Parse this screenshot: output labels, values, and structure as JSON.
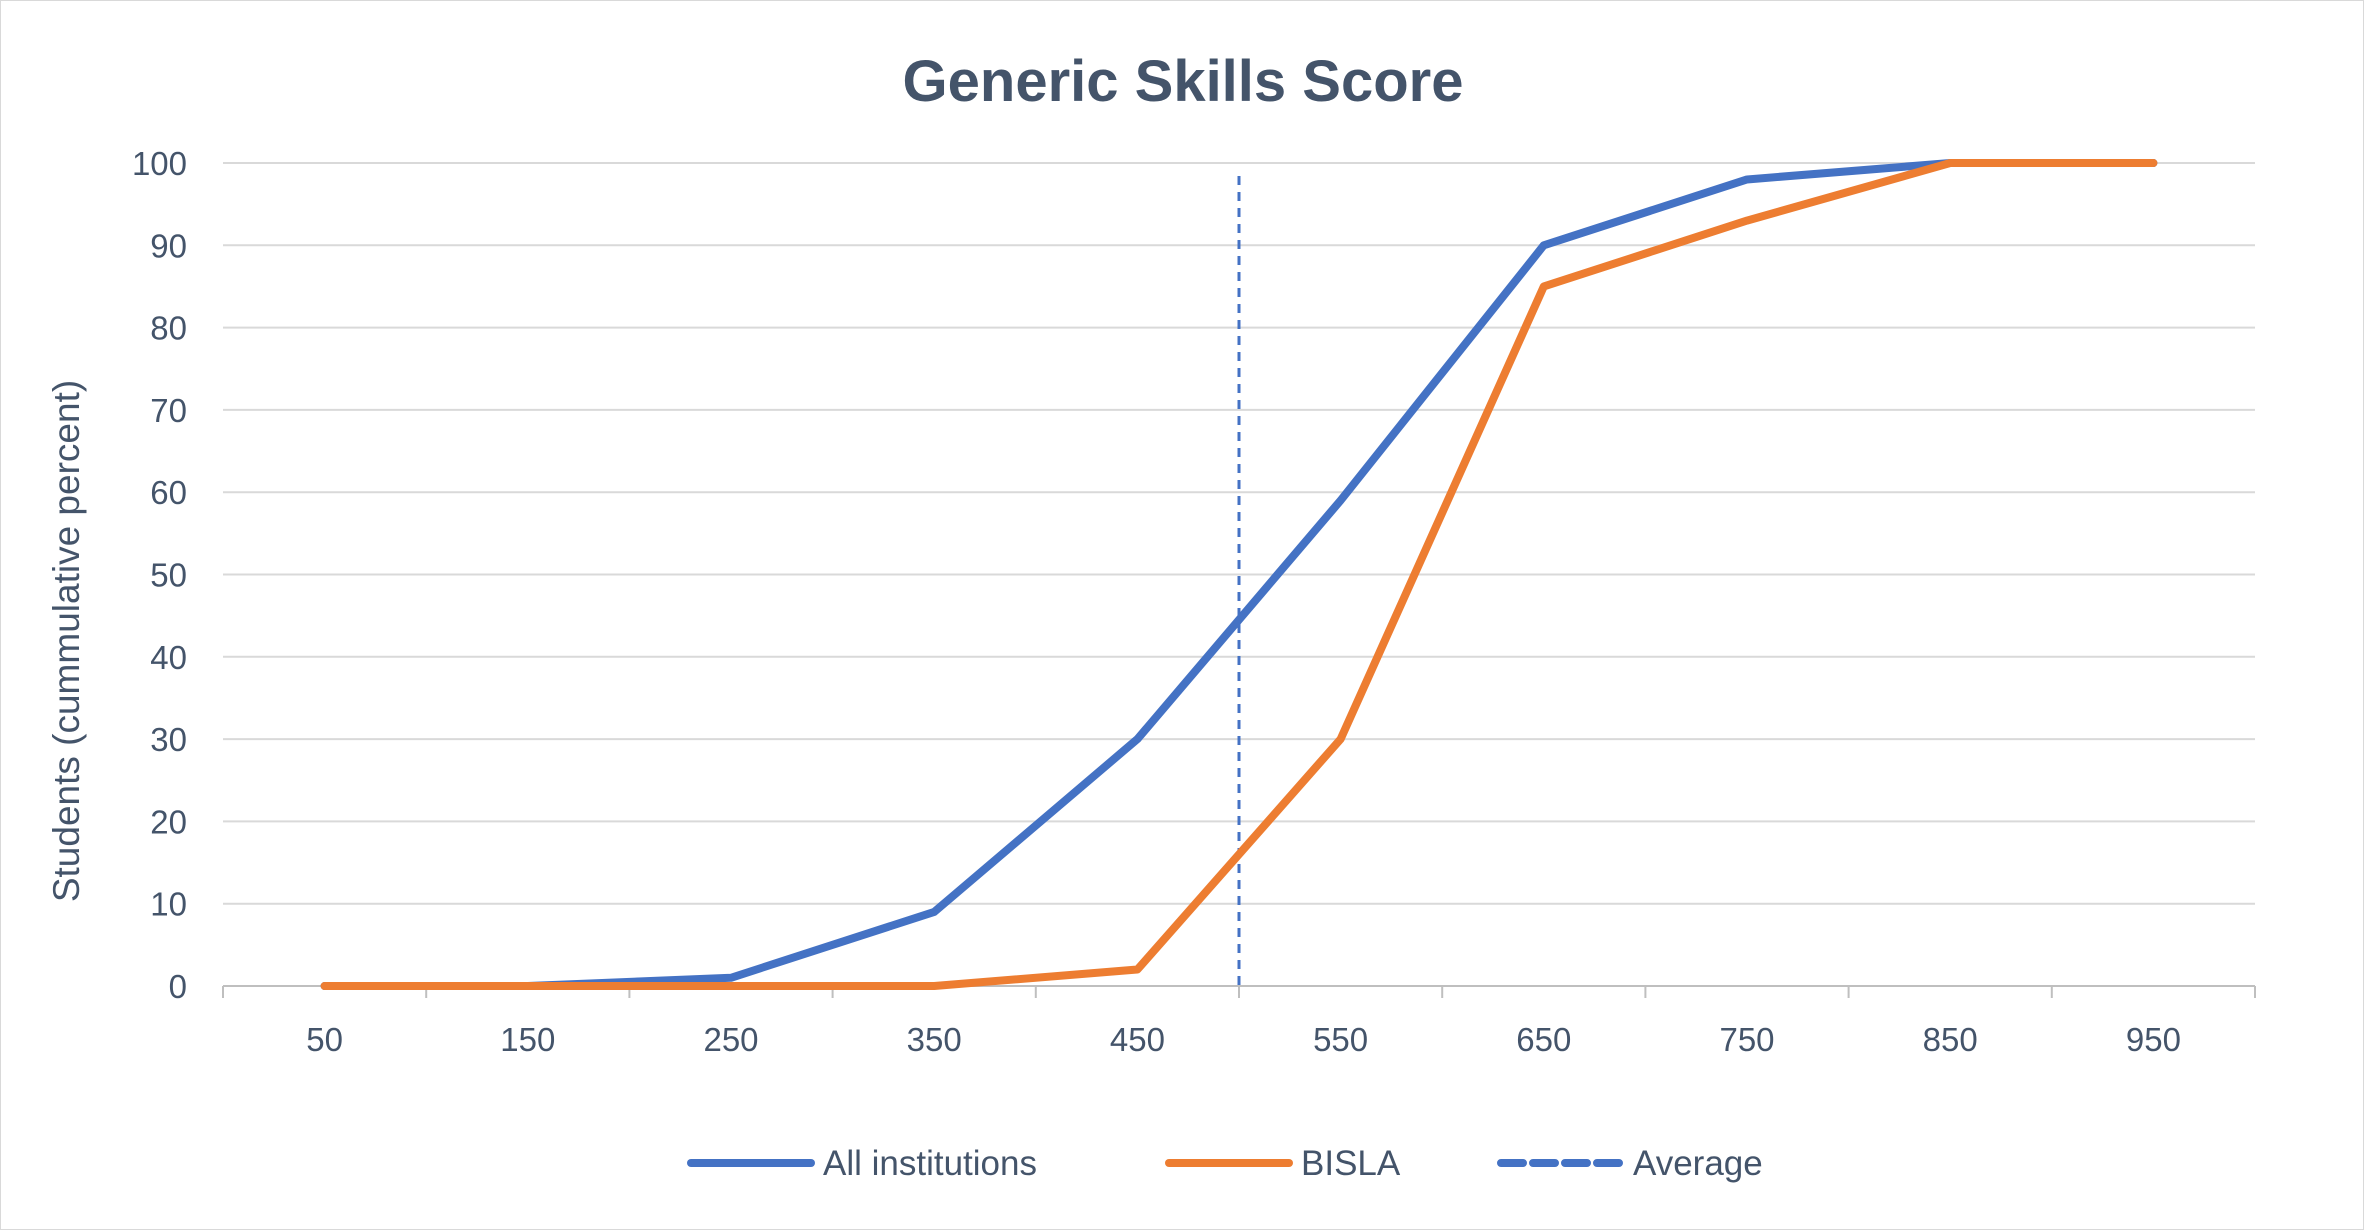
{
  "chart_data": {
    "type": "line",
    "title": "Generic Skills Score",
    "xlabel": "",
    "ylabel": "Students (cummulative percent)",
    "categories": [
      "50",
      "150",
      "250",
      "350",
      "450",
      "550",
      "650",
      "750",
      "850",
      "950"
    ],
    "ylim": [
      0,
      100
    ],
    "yticks": [
      0,
      10,
      20,
      30,
      40,
      50,
      60,
      70,
      80,
      90,
      100
    ],
    "grid": true,
    "legend_position": "bottom",
    "series": [
      {
        "name": "All institutions",
        "color": "#4472c4",
        "style": "solid",
        "values": [
          0,
          0,
          1,
          9,
          30,
          59,
          90,
          98,
          100,
          100
        ]
      },
      {
        "name": "BISLA",
        "color": "#ed7d31",
        "style": "solid",
        "values": [
          0,
          0,
          0,
          0,
          2,
          30,
          85,
          93,
          100,
          100
        ]
      }
    ],
    "reference_lines": [
      {
        "name": "Average",
        "color": "#4472c4",
        "style": "dashed",
        "x": 500
      }
    ]
  }
}
